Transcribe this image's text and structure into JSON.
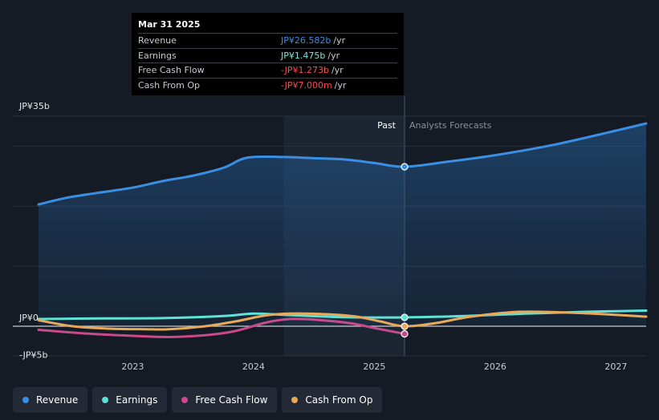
{
  "tooltip": {
    "date": "Mar 31 2025",
    "rows": [
      {
        "label": "Revenue",
        "value": "JP¥26.582b",
        "unit": "/yr",
        "color": "#3a8fe4"
      },
      {
        "label": "Earnings",
        "value": "JP¥1.475b",
        "unit": "/yr",
        "color": "#7ee6dc"
      },
      {
        "label": "Free Cash Flow",
        "value": "-JP¥1.273b",
        "unit": "/yr",
        "color": "#ff4a4a"
      },
      {
        "label": "Cash From Op",
        "value": "-JP¥7.000m",
        "unit": "/yr",
        "color": "#ff4a4a"
      }
    ]
  },
  "section_labels": {
    "past": "Past",
    "forecast": "Analysts Forecasts"
  },
  "legend": [
    {
      "label": "Revenue",
      "color": "#3a8fe4"
    },
    {
      "label": "Earnings",
      "color": "#5ee1d6"
    },
    {
      "label": "Free Cash Flow",
      "color": "#c94a8a"
    },
    {
      "label": "Cash From Op",
      "color": "#e8a95a"
    }
  ],
  "chart_data": {
    "type": "line",
    "title": "",
    "xlabel": "",
    "ylabel": "",
    "y_unit": "JP¥ billions",
    "ylim": [
      -5,
      35
    ],
    "y_tick_labels": [
      {
        "value": 35,
        "label": "JP¥35b"
      },
      {
        "value": 0,
        "label": "JP¥0"
      },
      {
        "value": -5,
        "label": "-JP¥5b"
      }
    ],
    "gridlines": [
      35,
      30,
      20,
      10,
      0
    ],
    "xlim": [
      2022.22,
      2027.25
    ],
    "x_ticks": [
      {
        "value": 2023,
        "label": "2023"
      },
      {
        "value": 2024,
        "label": "2024"
      },
      {
        "value": 2025,
        "label": "2025"
      },
      {
        "value": 2026,
        "label": "2026"
      },
      {
        "value": 2027,
        "label": "2027"
      }
    ],
    "past_start": 2024.25,
    "divider": 2025.25,
    "series": [
      {
        "name": "Revenue",
        "color": "#3a8fe4",
        "area": true,
        "x": [
          2022.22,
          2022.45,
          2022.7,
          2023.0,
          2023.25,
          2023.5,
          2023.75,
          2023.95,
          2024.25,
          2024.5,
          2024.75,
          2025.0,
          2025.25,
          2025.6,
          2026.0,
          2026.5,
          2027.0,
          2027.25
        ],
        "values": [
          20.3,
          21.4,
          22.2,
          23.1,
          24.2,
          25.1,
          26.4,
          28.1,
          28.2,
          28.0,
          27.8,
          27.2,
          26.582,
          27.4,
          28.5,
          30.3,
          32.6,
          33.8
        ]
      },
      {
        "name": "Earnings",
        "color": "#5ee1d6",
        "x": [
          2022.22,
          2022.75,
          2023.25,
          2023.75,
          2024.0,
          2024.25,
          2024.75,
          2025.25,
          2025.75,
          2026.25,
          2026.75,
          2027.25
        ],
        "values": [
          1.2,
          1.3,
          1.35,
          1.7,
          2.1,
          1.9,
          1.5,
          1.475,
          1.7,
          2.1,
          2.4,
          2.6
        ]
      },
      {
        "name": "Free Cash Flow",
        "color": "#c94a8a",
        "x": [
          2022.22,
          2022.6,
          2023.0,
          2023.3,
          2023.6,
          2023.85,
          2024.1,
          2024.3,
          2024.5,
          2024.8,
          2025.0,
          2025.25
        ],
        "values": [
          -0.6,
          -1.2,
          -1.6,
          -1.8,
          -1.5,
          -0.8,
          0.6,
          1.2,
          1.1,
          0.5,
          -0.3,
          -1.273
        ]
      },
      {
        "name": "Cash From Op",
        "color": "#e8a95a",
        "x": [
          2022.22,
          2022.5,
          2022.8,
          2023.1,
          2023.3,
          2023.6,
          2023.85,
          2024.1,
          2024.3,
          2024.6,
          2024.85,
          2025.05,
          2025.25,
          2025.5,
          2025.8,
          2026.2,
          2026.7,
          2027.25
        ],
        "values": [
          1.0,
          0.0,
          -0.4,
          -0.5,
          -0.5,
          0.0,
          0.8,
          1.8,
          2.1,
          2.0,
          1.6,
          0.8,
          -0.007,
          0.5,
          1.6,
          2.4,
          2.2,
          1.6
        ]
      }
    ]
  }
}
